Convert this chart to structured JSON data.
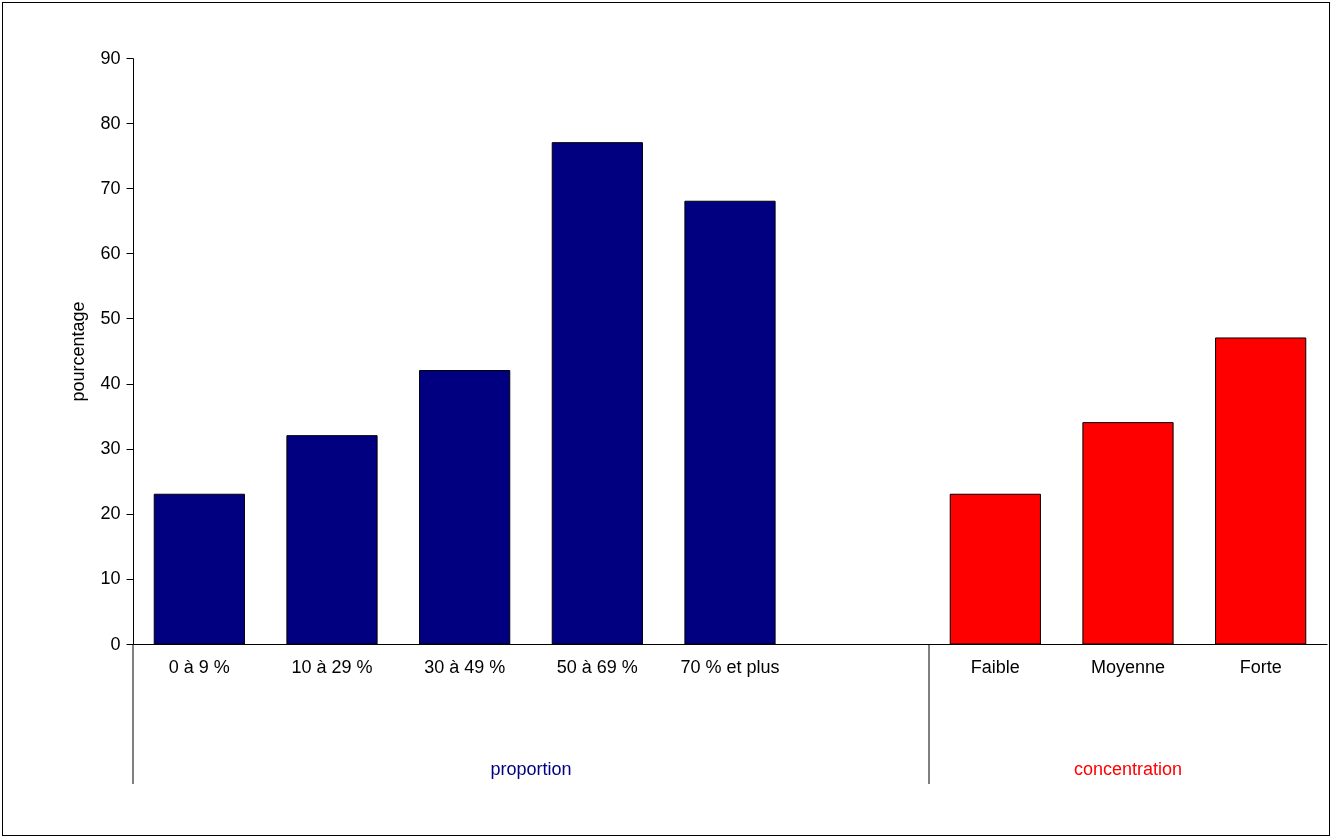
{
  "chart_data": {
    "type": "bar",
    "ylabel": "pourcentage",
    "categories": [
      "0 à 9 %",
      "10 à 29 %",
      "30 à 49 %",
      "50 à 69 %",
      "70 % et plus",
      null,
      "Faible",
      "Moyenne",
      "Forte"
    ],
    "series": [
      {
        "name": "proportion",
        "color": "#000080",
        "values": [
          23,
          32,
          42,
          77,
          68,
          null,
          null,
          null,
          null
        ]
      },
      {
        "name": "concentration",
        "color": "#ff0000",
        "values": [
          null,
          null,
          null,
          null,
          null,
          null,
          23,
          34,
          47
        ]
      }
    ],
    "ylim": [
      0,
      90
    ],
    "yticks": [
      0,
      10,
      20,
      30,
      40,
      50,
      60,
      70,
      80,
      90
    ],
    "grid": false
  }
}
